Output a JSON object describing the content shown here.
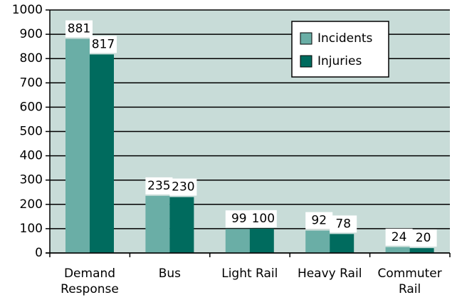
{
  "chart_data": {
    "type": "bar",
    "categories": [
      "Demand Response",
      "Bus",
      "Light Rail",
      "Heavy Rail",
      "Commuter Rail"
    ],
    "series": [
      {
        "name": "Incidents",
        "color": "#6aaea6",
        "values": [
          881,
          235,
          99,
          92,
          24
        ]
      },
      {
        "name": "Injuries",
        "color": "#006b5e",
        "values": [
          817,
          230,
          100,
          78,
          20
        ]
      }
    ],
    "ylim": [
      0,
      1000
    ],
    "yticks": [
      0,
      100,
      200,
      300,
      400,
      500,
      600,
      700,
      800,
      900,
      1000
    ],
    "grid": true,
    "legend": "upper right",
    "background": "#c8dcd8"
  }
}
